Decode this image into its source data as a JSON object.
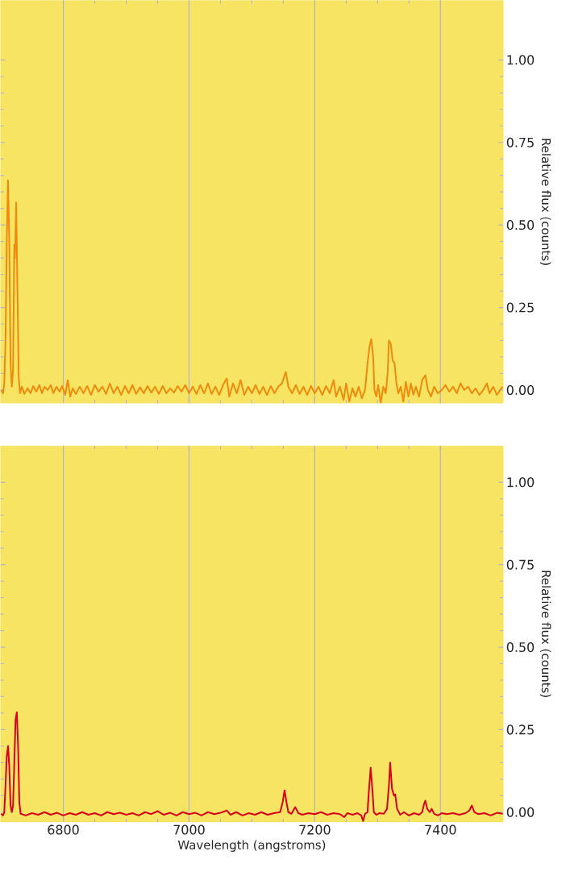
{
  "chart_data": [
    {
      "type": "line",
      "ylabel": "Relative flux (counts)",
      "grid": "x",
      "tick_labels": "y",
      "marker": "none",
      "line_style": "solid",
      "xlim": [
        6700,
        7500
      ],
      "ylim": [
        -0.04,
        1.18
      ],
      "xticks": [
        6800,
        7000,
        7200,
        7400
      ],
      "yticks": [
        {
          "value": 0,
          "label": "0.00"
        },
        {
          "value": 0.25,
          "label": "0.25"
        },
        {
          "value": 0.5,
          "label": "0.50"
        },
        {
          "value": 0.75,
          "label": "0.75"
        },
        {
          "value": 1,
          "label": "1.00"
        }
      ],
      "x": [
        6701,
        6704,
        6706,
        6708,
        6710,
        6712,
        6714,
        6716,
        6718,
        6720,
        6722,
        6723,
        6725,
        6727,
        6729,
        6731,
        6734,
        6738,
        6743,
        6748,
        6752,
        6757,
        6762,
        6766,
        6770,
        6775,
        6780,
        6784,
        6789,
        6794,
        6798,
        6803,
        6807,
        6811,
        6815,
        6820,
        6826,
        6832,
        6838,
        6844,
        6850,
        6856,
        6862,
        6868,
        6874,
        6880,
        6886,
        6892,
        6898,
        6904,
        6910,
        6916,
        6922,
        6928,
        6934,
        6940,
        6946,
        6952,
        6958,
        6964,
        6970,
        6976,
        6982,
        6988,
        6994,
        7000,
        7006,
        7012,
        7018,
        7024,
        7030,
        7036,
        7042,
        7048,
        7054,
        7060,
        7064,
        7070,
        7076,
        7082,
        7088,
        7094,
        7100,
        7106,
        7112,
        7118,
        7124,
        7130,
        7136,
        7142,
        7148,
        7154,
        7158,
        7164,
        7170,
        7176,
        7182,
        7188,
        7194,
        7200,
        7206,
        7212,
        7218,
        7224,
        7230,
        7234,
        7240,
        7246,
        7250,
        7255,
        7260,
        7265,
        7270,
        7275,
        7280,
        7284,
        7287,
        7290,
        7293,
        7295,
        7298,
        7301,
        7305,
        7309,
        7313,
        7316,
        7318,
        7321,
        7324,
        7327,
        7330,
        7333,
        7337,
        7341,
        7345,
        7349,
        7353,
        7357,
        7361,
        7366,
        7371,
        7376,
        7380,
        7385,
        7390,
        7396,
        7402,
        7408,
        7414,
        7420,
        7426,
        7432,
        7438,
        7444,
        7450,
        7456,
        7462,
        7468,
        7474,
        7478,
        7484,
        7490,
        7495,
        7499
      ],
      "series": [
        {
          "color": "#ef8a0c",
          "values": [
            0.0,
            -0.01,
            0.02,
            0.15,
            0.45,
            0.635,
            0.45,
            0.08,
            0.01,
            0.06,
            0.44,
            0.4,
            0.568,
            0.3,
            0.04,
            -0.01,
            0.01,
            -0.012,
            0.005,
            -0.01,
            0.012,
            -0.005,
            0.015,
            -0.01,
            0.01,
            0.0,
            0.015,
            -0.01,
            0.01,
            -0.005,
            0.012,
            -0.015,
            0.03,
            -0.02,
            0.005,
            -0.012,
            0.01,
            -0.01,
            0.012,
            -0.015,
            0.015,
            -0.005,
            0.01,
            -0.012,
            0.02,
            -0.01,
            0.01,
            -0.015,
            0.012,
            -0.01,
            0.015,
            -0.012,
            0.008,
            -0.01,
            0.012,
            -0.008,
            0.01,
            -0.012,
            0.012,
            -0.01,
            0.005,
            -0.008,
            0.012,
            -0.005,
            0.015,
            -0.01,
            0.01,
            -0.012,
            0.015,
            -0.01,
            0.02,
            -0.012,
            0.01,
            -0.015,
            0.015,
            0.035,
            -0.02,
            0.02,
            -0.01,
            0.03,
            -0.015,
            0.01,
            -0.01,
            0.015,
            -0.012,
            0.01,
            -0.015,
            0.012,
            -0.01,
            0.01,
            0.02,
            0.055,
            0.01,
            -0.01,
            0.015,
            -0.012,
            0.01,
            -0.015,
            0.012,
            -0.01,
            0.01,
            -0.015,
            0.012,
            -0.01,
            0.03,
            -0.02,
            0.01,
            -0.03,
            0.02,
            -0.035,
            0.005,
            -0.02,
            0.01,
            -0.025,
            0.0,
            0.08,
            0.13,
            0.154,
            0.1,
            0.0,
            -0.02,
            0.015,
            -0.04,
            0.01,
            -0.01,
            0.05,
            0.15,
            0.14,
            0.09,
            0.08,
            0.02,
            -0.01,
            0.01,
            -0.035,
            0.025,
            -0.02,
            0.02,
            -0.015,
            0.01,
            -0.02,
            0.03,
            0.045,
            0.0,
            -0.02,
            0.01,
            -0.01,
            0.0,
            0.015,
            -0.005,
            0.01,
            -0.01,
            0.02,
            0.0,
            0.01,
            -0.01,
            0.005,
            -0.015,
            0.0,
            0.02,
            -0.01,
            0.01,
            -0.015,
            0.0,
            0.01
          ]
        }
      ]
    },
    {
      "type": "line",
      "xlabel": "Wavelength (angstroms)",
      "ylabel": "Relative flux (counts)",
      "grid": "x",
      "marker": "none",
      "line_style": "solid",
      "xlim": [
        6700,
        7500
      ],
      "ylim": [
        -0.03,
        1.11
      ],
      "xticks": [
        6800,
        7000,
        7200,
        7400
      ],
      "yticks": [
        {
          "value": 0,
          "label": "0.00"
        },
        {
          "value": 0.25,
          "label": "0.25"
        },
        {
          "value": 0.5,
          "label": "0.50"
        },
        {
          "value": 0.75,
          "label": "0.75"
        },
        {
          "value": 1,
          "label": "1.00"
        }
      ],
      "x": [
        6701,
        6704,
        6706,
        6708,
        6710,
        6712,
        6714,
        6716,
        6718,
        6720,
        6722,
        6724,
        6726,
        6728,
        6730,
        6732,
        6740,
        6750,
        6760,
        6770,
        6780,
        6790,
        6800,
        6810,
        6820,
        6830,
        6840,
        6850,
        6860,
        6870,
        6880,
        6890,
        6900,
        6910,
        6920,
        6930,
        6940,
        6950,
        6960,
        6970,
        6980,
        6990,
        7000,
        7010,
        7020,
        7030,
        7040,
        7050,
        7060,
        7066,
        7075,
        7085,
        7095,
        7105,
        7115,
        7125,
        7135,
        7145,
        7149,
        7152,
        7155,
        7158,
        7163,
        7169,
        7174,
        7180,
        7190,
        7200,
        7210,
        7220,
        7230,
        7240,
        7247,
        7252,
        7260,
        7268,
        7274,
        7277,
        7280,
        7284,
        7286,
        7289,
        7292,
        7294,
        7298,
        7303,
        7310,
        7315,
        7318,
        7320,
        7323,
        7326,
        7328,
        7331,
        7336,
        7342,
        7350,
        7358,
        7366,
        7371,
        7374,
        7376,
        7379,
        7383,
        7386,
        7390,
        7396,
        7402,
        7410,
        7420,
        7430,
        7440,
        7446,
        7450,
        7454,
        7460,
        7470,
        7480,
        7490,
        7499
      ],
      "series": [
        {
          "color": "#d9001b",
          "values": [
            -0.005,
            -0.01,
            0.0,
            0.08,
            0.17,
            0.2,
            0.14,
            0.02,
            0.0,
            0.02,
            0.15,
            0.28,
            0.303,
            0.2,
            0.03,
            -0.005,
            -0.01,
            -0.003,
            -0.008,
            0.0,
            -0.008,
            -0.002,
            -0.01,
            -0.003,
            -0.008,
            0.0,
            -0.008,
            -0.003,
            -0.01,
            0.0,
            -0.006,
            -0.002,
            -0.008,
            -0.003,
            -0.01,
            0.0,
            -0.006,
            0.003,
            -0.008,
            -0.002,
            -0.01,
            0.0,
            -0.006,
            -0.002,
            -0.01,
            0.0,
            -0.006,
            -0.002,
            0.005,
            -0.008,
            0.0,
            -0.01,
            -0.003,
            -0.008,
            0.0,
            -0.008,
            -0.003,
            0.0,
            0.03,
            0.066,
            0.03,
            0.0,
            -0.005,
            0.015,
            -0.003,
            -0.008,
            -0.003,
            -0.006,
            0.0,
            -0.008,
            -0.003,
            -0.006,
            -0.015,
            -0.003,
            -0.008,
            -0.003,
            -0.01,
            -0.027,
            -0.005,
            0.0,
            0.06,
            0.135,
            0.06,
            0.0,
            -0.008,
            -0.003,
            -0.005,
            0.01,
            0.08,
            0.15,
            0.07,
            0.05,
            0.054,
            0.01,
            -0.008,
            0.0,
            -0.01,
            -0.003,
            -0.008,
            0.0,
            0.025,
            0.035,
            0.01,
            0.0,
            0.01,
            -0.005,
            -0.01,
            -0.003,
            -0.006,
            -0.003,
            -0.008,
            -0.003,
            0.005,
            0.02,
            0.0,
            -0.006,
            -0.003,
            -0.01,
            -0.002,
            -0.005
          ]
        }
      ]
    }
  ]
}
